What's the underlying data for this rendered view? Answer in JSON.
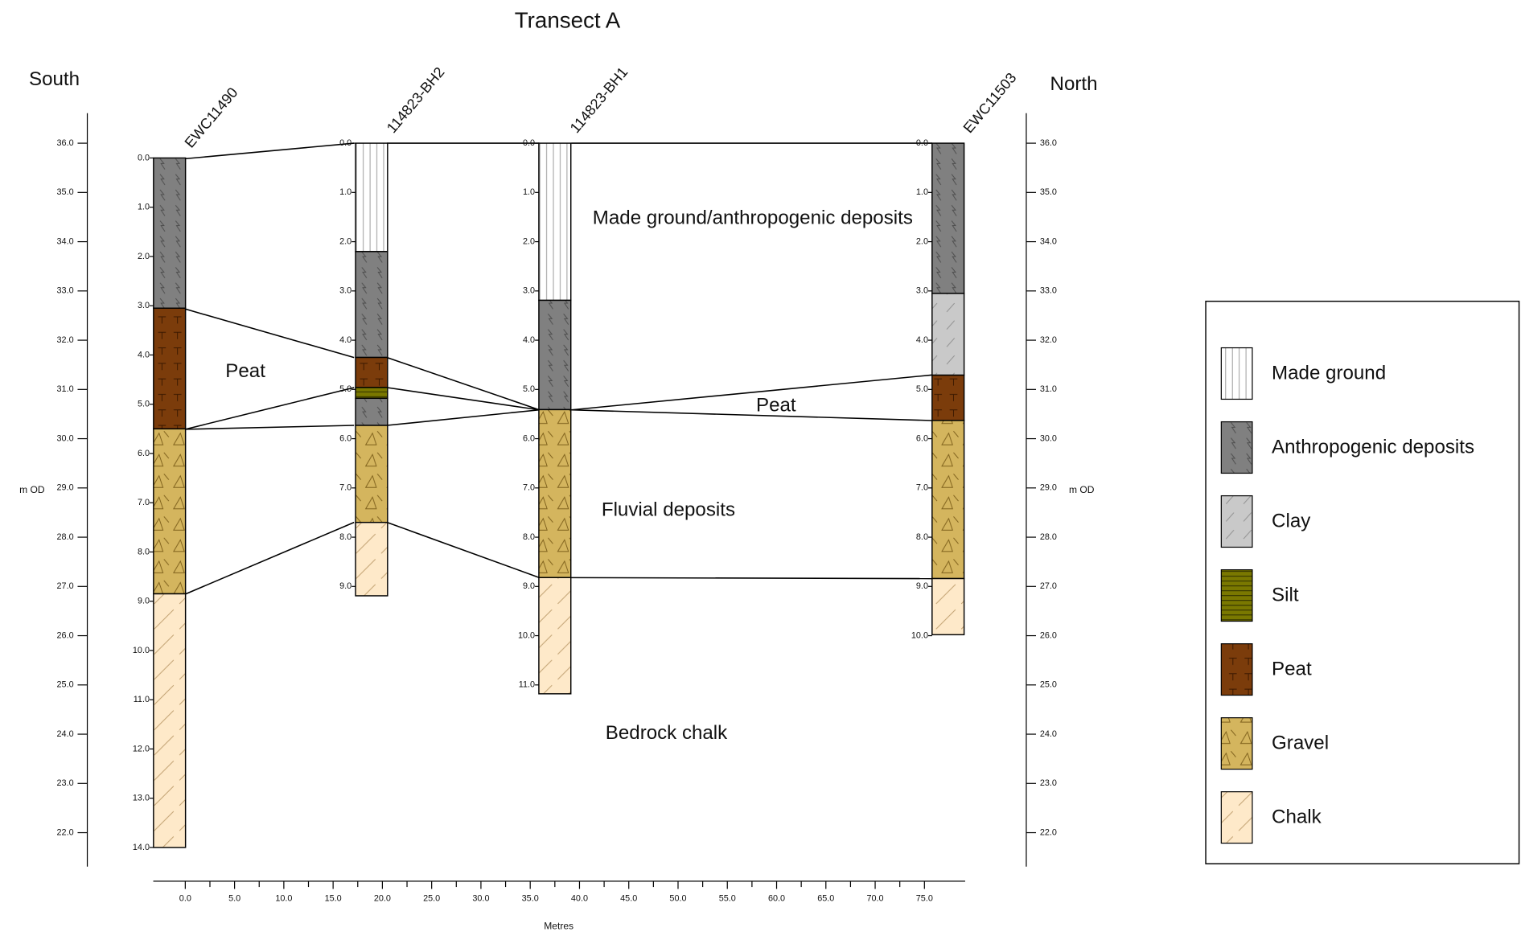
{
  "title": "Transect A",
  "left_label": "South",
  "right_label": "North",
  "elevation_axis": {
    "label": "m OD",
    "ticks": [
      {
        "value": 36,
        "label": "36.0"
      },
      {
        "value": 35,
        "label": "35.0"
      },
      {
        "value": 34,
        "label": "34.0"
      },
      {
        "value": 33,
        "label": "33.0"
      },
      {
        "value": 32,
        "label": "32.0"
      },
      {
        "value": 31,
        "label": "31.0"
      },
      {
        "value": 30,
        "label": "30.0"
      },
      {
        "value": 29,
        "label": "29.0"
      },
      {
        "value": 28,
        "label": "28.0"
      },
      {
        "value": 27,
        "label": "27.0"
      },
      {
        "value": 26,
        "label": "26.0"
      },
      {
        "value": 25,
        "label": "25.0"
      },
      {
        "value": 24,
        "label": "24.0"
      },
      {
        "value": 23,
        "label": "23.0"
      },
      {
        "value": 22,
        "label": "22.0"
      }
    ]
  },
  "distance_axis": {
    "label": "Metres",
    "ticks": [
      {
        "value": 0,
        "label": "0.0"
      },
      {
        "value": 5,
        "label": "5.0"
      },
      {
        "value": 10,
        "label": "10.0"
      },
      {
        "value": 15,
        "label": "15.0"
      },
      {
        "value": 20,
        "label": "20.0"
      },
      {
        "value": 25,
        "label": "25.0"
      },
      {
        "value": 30,
        "label": "30.0"
      },
      {
        "value": 35,
        "label": "35.0"
      },
      {
        "value": 40,
        "label": "40.0"
      },
      {
        "value": 45,
        "label": "45.0"
      },
      {
        "value": 50,
        "label": "50.0"
      },
      {
        "value": 55,
        "label": "55.0"
      },
      {
        "value": 60,
        "label": "60.0"
      },
      {
        "value": 65,
        "label": "65.0"
      },
      {
        "value": 70,
        "label": "70.0"
      },
      {
        "value": 75,
        "label": "75.0"
      }
    ]
  },
  "boreholes": [
    {
      "name": "EWC11490",
      "x": -1.6,
      "top": 35.7,
      "depth_ticks": [
        {
          "value": 0,
          "label": "0.0"
        },
        {
          "value": 1,
          "label": "1.0"
        },
        {
          "value": 2,
          "label": "2.0"
        },
        {
          "value": 3,
          "label": "3.0"
        },
        {
          "value": 4,
          "label": "4.0"
        },
        {
          "value": 5,
          "label": "5.0"
        },
        {
          "value": 6,
          "label": "6.0"
        },
        {
          "value": 7,
          "label": "7.0"
        },
        {
          "value": 8,
          "label": "8.0"
        },
        {
          "value": 9,
          "label": "9.0"
        },
        {
          "value": 10,
          "label": "10.0"
        },
        {
          "value": 11,
          "label": "11.0"
        },
        {
          "value": 12,
          "label": "12.0"
        },
        {
          "value": 13,
          "label": "13.0"
        },
        {
          "value": 14,
          "label": "14.0"
        }
      ],
      "layers": [
        {
          "material": "Anthropogenic deposits",
          "from": 0,
          "to": 3.05
        },
        {
          "material": "Peat",
          "from": 3.05,
          "to": 5.5
        },
        {
          "material": "Gravel",
          "from": 5.5,
          "to": 8.85
        },
        {
          "material": "Chalk",
          "from": 8.85,
          "to": 14.0
        }
      ]
    },
    {
      "name": "114823-BH2",
      "x": 18.9,
      "top": 36.0,
      "depth_ticks": [
        {
          "value": 0,
          "label": "0.0"
        },
        {
          "value": 1,
          "label": "1.0"
        },
        {
          "value": 2,
          "label": "2.0"
        },
        {
          "value": 3,
          "label": "3.0"
        },
        {
          "value": 4,
          "label": "4.0"
        },
        {
          "value": 5,
          "label": "5.0"
        },
        {
          "value": 6,
          "label": "6.0"
        },
        {
          "value": 7,
          "label": "7.0"
        },
        {
          "value": 8,
          "label": "8.0"
        },
        {
          "value": 9,
          "label": "9.0"
        }
      ],
      "layers": [
        {
          "material": "Made ground",
          "from": 0,
          "to": 2.2
        },
        {
          "material": "Anthropogenic deposits",
          "from": 2.2,
          "to": 4.35
        },
        {
          "material": "Peat",
          "from": 4.35,
          "to": 4.96
        },
        {
          "material": "Silt",
          "from": 4.96,
          "to": 5.18
        },
        {
          "material": "Anthropogenic deposits",
          "from": 5.18,
          "to": 5.73
        },
        {
          "material": "Gravel",
          "from": 5.73,
          "to": 7.7
        },
        {
          "material": "Chalk",
          "from": 7.7,
          "to": 9.19
        }
      ]
    },
    {
      "name": "114823-BH1",
      "x": 37.5,
      "top": 36.0,
      "depth_ticks": [
        {
          "value": 0,
          "label": "0.0"
        },
        {
          "value": 1,
          "label": "1.0"
        },
        {
          "value": 2,
          "label": "2.0"
        },
        {
          "value": 3,
          "label": "3.0"
        },
        {
          "value": 4,
          "label": "4.0"
        },
        {
          "value": 5,
          "label": "5.0"
        },
        {
          "value": 6,
          "label": "6.0"
        },
        {
          "value": 7,
          "label": "7.0"
        },
        {
          "value": 8,
          "label": "8.0"
        },
        {
          "value": 9,
          "label": "9.0"
        },
        {
          "value": 10,
          "label": "10.0"
        },
        {
          "value": 11,
          "label": "11.0"
        }
      ],
      "layers": [
        {
          "material": "Made ground",
          "from": 0,
          "to": 3.19
        },
        {
          "material": "Anthropogenic deposits",
          "from": 3.19,
          "to": 5.41
        },
        {
          "material": "Gravel",
          "from": 5.41,
          "to": 8.82
        },
        {
          "material": "Chalk",
          "from": 8.82,
          "to": 11.18
        }
      ]
    },
    {
      "name": "EWC11503",
      "x": 77.4,
      "top": 36.0,
      "depth_ticks": [
        {
          "value": 0,
          "label": "0.0"
        },
        {
          "value": 1,
          "label": "1.0"
        },
        {
          "value": 2,
          "label": "2.0"
        },
        {
          "value": 3,
          "label": "3.0"
        },
        {
          "value": 4,
          "label": "4.0"
        },
        {
          "value": 5,
          "label": "5.0"
        },
        {
          "value": 6,
          "label": "6.0"
        },
        {
          "value": 7,
          "label": "7.0"
        },
        {
          "value": 8,
          "label": "8.0"
        },
        {
          "value": 9,
          "label": "9.0"
        },
        {
          "value": 10,
          "label": "10.0"
        }
      ],
      "layers": [
        {
          "material": "Anthropogenic deposits",
          "from": 0,
          "to": 3.05
        },
        {
          "material": "Clay",
          "from": 3.05,
          "to": 4.71
        },
        {
          "material": "Peat",
          "from": 4.71,
          "to": 5.63
        },
        {
          "material": "Gravel",
          "from": 5.63,
          "to": 8.84
        },
        {
          "material": "Chalk",
          "from": 8.84,
          "to": 9.98
        }
      ]
    }
  ],
  "annotations": [
    "Made ground/anthropogenic deposits",
    "Peat",
    "Peat",
    "Fluvial deposits",
    "Bedrock chalk"
  ],
  "legend": [
    {
      "name": "Made ground",
      "color": "#ffffff"
    },
    {
      "name": "Anthropogenic deposits",
      "color": "#808080"
    },
    {
      "name": "Clay",
      "color": "#c9c9c9"
    },
    {
      "name": "Silt",
      "color": "#7a7800"
    },
    {
      "name": "Peat",
      "color": "#7b3c0b"
    },
    {
      "name": "Gravel",
      "color": "#d4b55e"
    },
    {
      "name": "Chalk",
      "color": "#fee9c9"
    }
  ]
}
